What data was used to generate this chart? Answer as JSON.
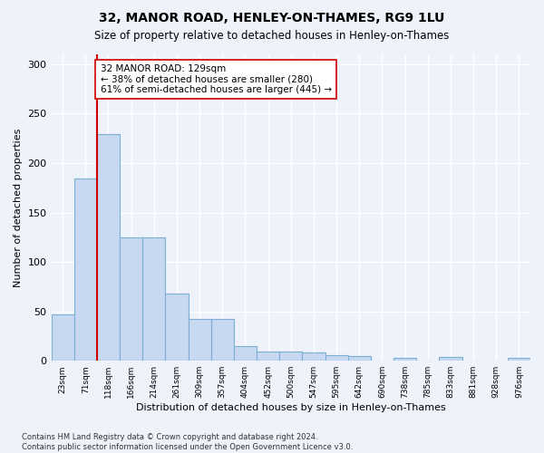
{
  "title": "32, MANOR ROAD, HENLEY-ON-THAMES, RG9 1LU",
  "subtitle": "Size of property relative to detached houses in Henley-on-Thames",
  "xlabel": "Distribution of detached houses by size in Henley-on-Thames",
  "ylabel": "Number of detached properties",
  "bar_values": [
    47,
    184,
    229,
    125,
    125,
    68,
    42,
    42,
    15,
    9,
    9,
    8,
    6,
    5,
    0,
    3,
    0,
    4,
    0,
    0,
    3
  ],
  "categories": [
    "23sqm",
    "71sqm",
    "118sqm",
    "166sqm",
    "214sqm",
    "261sqm",
    "309sqm",
    "357sqm",
    "404sqm",
    "452sqm",
    "500sqm",
    "547sqm",
    "595sqm",
    "642sqm",
    "690sqm",
    "738sqm",
    "785sqm",
    "833sqm",
    "881sqm",
    "928sqm",
    "976sqm"
  ],
  "bar_color": "#c6d9f0",
  "bar_edge_color": "#7bafd4",
  "vline_index": 2,
  "vline_color": "#cc0000",
  "annotation_text": "32 MANOR ROAD: 129sqm\n← 38% of detached houses are smaller (280)\n61% of semi-detached houses are larger (445) →",
  "annotation_box_color": "#ffffff",
  "annotation_box_edge": "#cc0000",
  "ylim": [
    0,
    310
  ],
  "yticks": [
    0,
    50,
    100,
    150,
    200,
    250,
    300
  ],
  "background_color": "#eef2fb",
  "grid_color": "#ffffff",
  "footer": "Contains HM Land Registry data © Crown copyright and database right 2024.\nContains public sector information licensed under the Open Government Licence v3.0."
}
